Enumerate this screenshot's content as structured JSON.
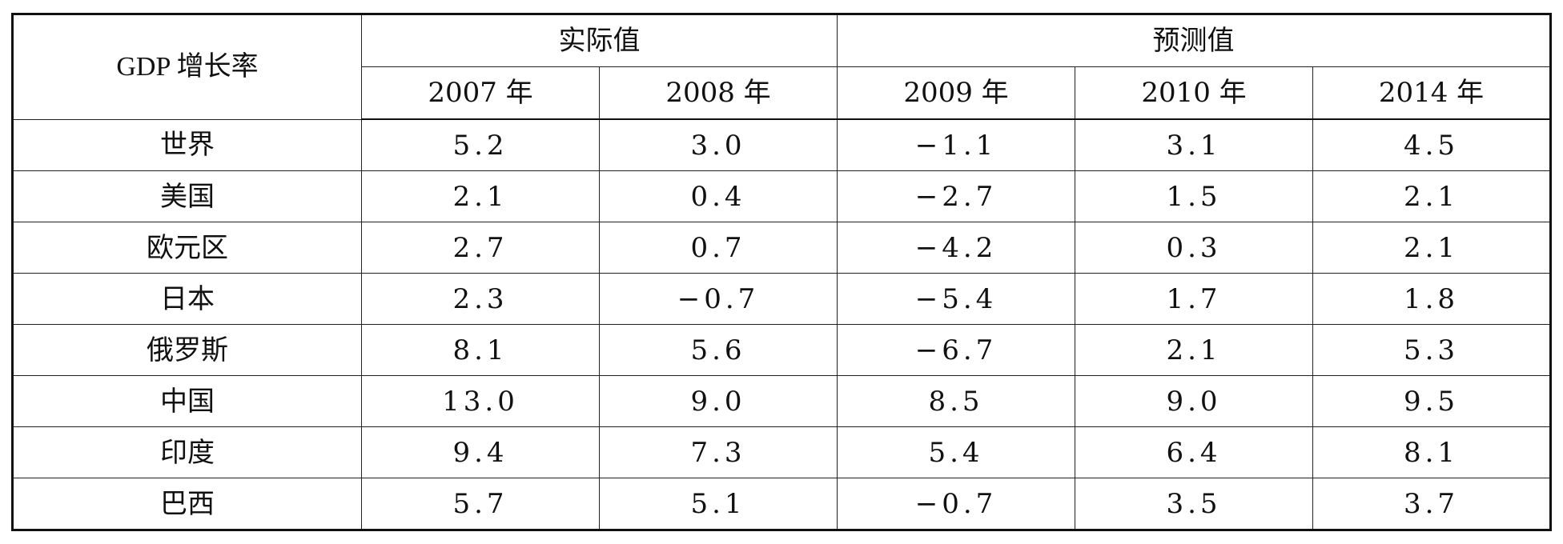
{
  "table": {
    "corner_label": "GDP 增长率",
    "group_headers": [
      {
        "label": "实际值",
        "span": 2
      },
      {
        "label": "预测值",
        "span": 3
      }
    ],
    "year_headers": [
      "2007 年",
      "2008 年",
      "2009 年",
      "2010 年",
      "2014 年"
    ],
    "rows": [
      {
        "region": "世界",
        "values": [
          "5.2",
          "3.0",
          "−1.1",
          "3.1",
          "4.5"
        ]
      },
      {
        "region": "美国",
        "values": [
          "2.1",
          "0.4",
          "−2.7",
          "1.5",
          "2.1"
        ]
      },
      {
        "region": "欧元区",
        "values": [
          "2.7",
          "0.7",
          "−4.2",
          "0.3",
          "2.1"
        ]
      },
      {
        "region": "日本",
        "values": [
          "2.3",
          "−0.7",
          "−5.4",
          "1.7",
          "1.8"
        ]
      },
      {
        "region": "俄罗斯",
        "values": [
          "8.1",
          "5.6",
          "−6.7",
          "2.1",
          "5.3"
        ]
      },
      {
        "region": "中国",
        "values": [
          "13.0",
          "9.0",
          "8.5",
          "9.0",
          "9.5"
        ]
      },
      {
        "region": "印度",
        "values": [
          "9.4",
          "7.3",
          "5.4",
          "6.4",
          "8.1"
        ]
      },
      {
        "region": "巴西",
        "values": [
          "5.7",
          "5.1",
          "−0.7",
          "3.5",
          "3.7"
        ]
      }
    ]
  }
}
